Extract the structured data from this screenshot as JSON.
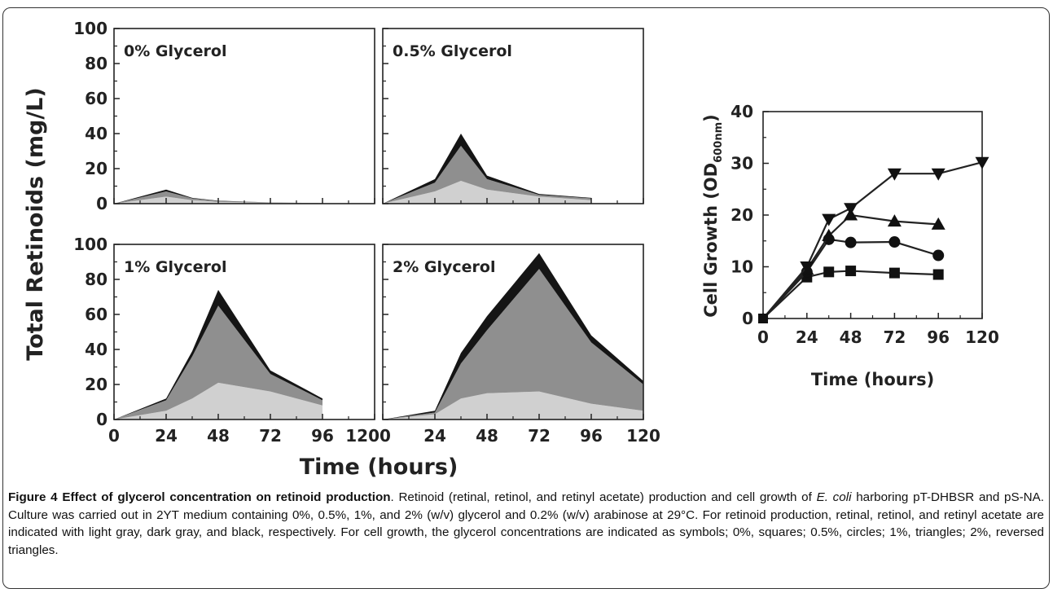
{
  "chart_data": [
    {
      "type": "area",
      "stacked": true,
      "panels": [
        {
          "title": "0% Glycerol",
          "x": [
            0,
            24,
            36,
            48,
            72,
            96
          ],
          "series": [
            {
              "values": [
                0,
                4,
                2,
                1,
                0.5,
                0.2
              ],
              "color": "#d0d0d0"
            },
            {
              "values": [
                0,
                3,
                1,
                0.5,
                0.2,
                0.1
              ],
              "color": "#8f8f8f"
            },
            {
              "values": [
                0,
                1,
                0.3,
                0.2,
                0,
                0
              ],
              "color": "#151515"
            }
          ]
        },
        {
          "title": "0.5% Glycerol",
          "x": [
            0,
            24,
            36,
            48,
            72,
            96
          ],
          "series": [
            {
              "values": [
                0,
                7,
                13,
                8,
                4,
                2
              ],
              "color": "#d0d0d0"
            },
            {
              "values": [
                0,
                5,
                20,
                6,
                1,
                1
              ],
              "color": "#8f8f8f"
            },
            {
              "values": [
                0,
                2,
                7,
                2,
                0.5,
                0.3
              ],
              "color": "#151515"
            }
          ]
        },
        {
          "title": "1% Glycerol",
          "x": [
            0,
            24,
            36,
            48,
            72,
            96
          ],
          "series": [
            {
              "values": [
                0,
                5,
                12,
                21,
                16,
                8
              ],
              "color": "#d0d0d0"
            },
            {
              "values": [
                0,
                6,
                24,
                44,
                10,
                3
              ],
              "color": "#8f8f8f"
            },
            {
              "values": [
                0,
                1,
                3,
                9,
                2,
                1
              ],
              "color": "#151515"
            }
          ]
        },
        {
          "title": "2% Glycerol",
          "x": [
            0,
            24,
            36,
            48,
            72,
            96,
            120
          ],
          "series": [
            {
              "values": [
                0,
                3,
                12,
                15,
                16,
                9,
                5
              ],
              "color": "#d0d0d0"
            },
            {
              "values": [
                0,
                1,
                20,
                36,
                70,
                35,
                15
              ],
              "color": "#8f8f8f"
            },
            {
              "values": [
                0,
                1,
                6,
                8,
                9,
                4,
                2
              ],
              "color": "#151515"
            }
          ]
        }
      ],
      "xlabel": "Time (hours)",
      "ylabel": "Total Retinoids (mg/L)",
      "xlim": [
        0,
        120
      ],
      "ylim": [
        0,
        100
      ],
      "xticks": [
        0,
        24,
        48,
        72,
        96,
        120
      ],
      "yticks": [
        0,
        20,
        40,
        60,
        80,
        100
      ],
      "grid": false
    },
    {
      "type": "line",
      "x": [
        0,
        24,
        36,
        48,
        72,
        96,
        120
      ],
      "series": [
        {
          "marker": "square",
          "values": [
            0,
            8,
            9,
            9.2,
            8.8,
            8.5,
            null
          ]
        },
        {
          "marker": "circle",
          "values": [
            0,
            9,
            15.3,
            14.7,
            14.8,
            12.2,
            null
          ]
        },
        {
          "marker": "triangle",
          "values": [
            0,
            9.5,
            16,
            20,
            18.8,
            18.2,
            null
          ]
        },
        {
          "marker": "reversed-triangle",
          "values": [
            0,
            10,
            19.2,
            21.3,
            28,
            28,
            30.2
          ]
        }
      ],
      "xlabel": "Time (hours)",
      "ylabel_main": "Cell Growth (OD",
      "ylabel_sub": "600nm",
      "ylabel_end": ")",
      "xlim": [
        0,
        120
      ],
      "ylim": [
        0,
        40
      ],
      "xticks": [
        0,
        24,
        48,
        72,
        96,
        120
      ],
      "yticks": [
        0,
        10,
        20,
        30,
        40
      ],
      "grid": false
    }
  ],
  "caption": {
    "title": "Figure 4 Effect of glycerol concentration on retinoid production",
    "p1": ". Retinoid (retinal, retinol, and retinyl acetate) production and cell growth of ",
    "italic": "E. coli",
    "p2": " harboring pT-DHBSR and pS-NA. Culture was carried out in 2YT medium containing 0%, 0.5%, 1%, and 2% (w/v) glycerol and 0.2% (w/v) arabinose at 29°C. For retinoid production, retinal, retinol, and retinyl acetate are indicated with light gray, dark gray, and black, respectively. For cell growth, the glycerol concentrations are indicated as symbols; 0%, squares; 0.5%, circles; 1%, triangles; 2%, reversed triangles."
  }
}
